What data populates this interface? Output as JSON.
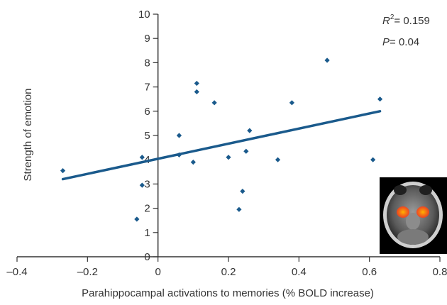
{
  "chart_data": {
    "type": "scatter",
    "xlabel": "Parahippocampal activations to memories (% BOLD increase)",
    "ylabel": "Strength of emotion",
    "xlim": [
      -0.4,
      0.8
    ],
    "ylim": [
      0,
      10
    ],
    "x_ticks": [
      -0.4,
      -0.2,
      0,
      0.2,
      0.4,
      0.6,
      0.8
    ],
    "x_tick_labels": [
      "–0.4",
      "–0.2",
      "0",
      "0.2",
      "0.4",
      "0.6",
      "0.8"
    ],
    "y_ticks": [
      0,
      1,
      2,
      3,
      4,
      5,
      6,
      7,
      8,
      9,
      10
    ],
    "y_tick_labels": [
      "0",
      "1",
      "2",
      "3",
      "4",
      "5",
      "6",
      "7",
      "8",
      "9",
      "10"
    ],
    "grid": false,
    "points": [
      {
        "x": -0.27,
        "y": 3.55
      },
      {
        "x": -0.06,
        "y": 1.55
      },
      {
        "x": -0.045,
        "y": 2.95
      },
      {
        "x": -0.045,
        "y": 4.1
      },
      {
        "x": 0.06,
        "y": 5.0
      },
      {
        "x": 0.06,
        "y": 4.2
      },
      {
        "x": 0.1,
        "y": 3.9
      },
      {
        "x": 0.11,
        "y": 7.15
      },
      {
        "x": 0.11,
        "y": 6.8
      },
      {
        "x": 0.16,
        "y": 6.35
      },
      {
        "x": 0.2,
        "y": 4.1
      },
      {
        "x": 0.23,
        "y": 1.95
      },
      {
        "x": 0.24,
        "y": 2.7
      },
      {
        "x": 0.25,
        "y": 4.35
      },
      {
        "x": 0.26,
        "y": 5.2
      },
      {
        "x": 0.34,
        "y": 4.0
      },
      {
        "x": 0.38,
        "y": 6.35
      },
      {
        "x": 0.48,
        "y": 8.1
      },
      {
        "x": 0.61,
        "y": 4.0
      },
      {
        "x": 0.63,
        "y": 6.5
      }
    ],
    "regression_line": {
      "x": [
        -0.27,
        0.63
      ],
      "y": [
        3.2,
        6.0
      ]
    },
    "annotations": {
      "r2_symbol": "R",
      "r2_exponent": "2",
      "r2_value": "= 0.159",
      "p_symbol": "P",
      "p_value": "= 0.04"
    },
    "colors": {
      "marker": "#1a5a8c",
      "line": "#1a5a8c",
      "axis": "#333333"
    }
  },
  "inset": {
    "icon": "brain-mri-axial-slice",
    "highlight_colors": [
      "#ff5a1e",
      "#ffb400"
    ]
  }
}
